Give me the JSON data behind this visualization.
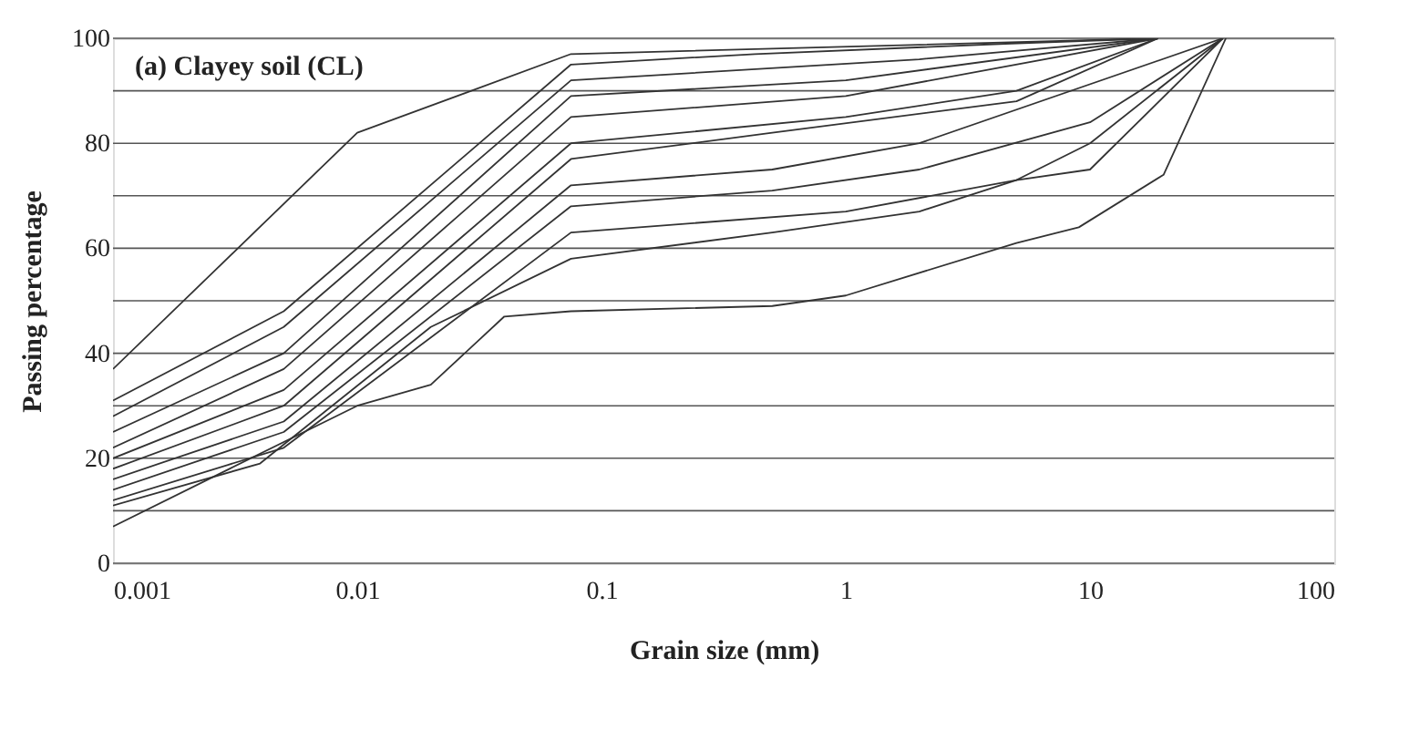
{
  "chart_data": {
    "type": "line",
    "xlabel": "Grain size (mm)",
    "ylabel": "Passing percentage",
    "annotations": [
      "(a) Clayey soil (CL)"
    ],
    "log": "x",
    "grid": "y",
    "marker": "none",
    "line_style": "solid",
    "xlim": [
      0.001,
      100
    ],
    "xticks": [
      0.001,
      0.01,
      0.1,
      1,
      10,
      100
    ],
    "ylim": [
      0,
      100
    ],
    "yticks": [
      0,
      {
        "value": 10,
        "label": null
      },
      20,
      {
        "value": 30,
        "label": null
      },
      40,
      {
        "value": 50,
        "label": null
      },
      60,
      {
        "value": 70,
        "label": null
      },
      80,
      {
        "value": 90,
        "label": null
      },
      100
    ],
    "series": [
      {
        "color": "#333333",
        "x": [
          0.001,
          0.01,
          0.075,
          19
        ],
        "values": [
          37,
          82,
          97,
          100
        ]
      },
      {
        "color": "#333333",
        "x": [
          0.001,
          0.005,
          0.075,
          0.425,
          4.75,
          19
        ],
        "values": [
          31,
          48,
          95,
          97,
          99,
          100
        ]
      },
      {
        "color": "#333333",
        "x": [
          0.001,
          0.005,
          0.075,
          2,
          19
        ],
        "values": [
          28,
          45,
          92,
          96,
          100
        ]
      },
      {
        "color": "#333333",
        "x": [
          0.001,
          0.005,
          0.075,
          1,
          19
        ],
        "values": [
          25,
          40,
          89,
          92,
          100
        ]
      },
      {
        "color": "#333333",
        "x": [
          0.001,
          0.005,
          0.075,
          1,
          19
        ],
        "values": [
          22,
          37,
          85,
          89,
          100
        ]
      },
      {
        "color": "#333333",
        "x": [
          0.001,
          0.005,
          0.075,
          1,
          5,
          19
        ],
        "values": [
          20,
          33,
          80,
          85,
          90,
          100
        ]
      },
      {
        "color": "#333333",
        "x": [
          0.001,
          0.005,
          0.075,
          0.5,
          5,
          19
        ],
        "values": [
          18,
          30,
          77,
          82,
          88,
          100
        ]
      },
      {
        "color": "#333333",
        "x": [
          0.001,
          0.005,
          0.075,
          0.5,
          2,
          35
        ],
        "values": [
          16,
          27,
          72,
          75,
          80,
          100
        ]
      },
      {
        "color": "#333333",
        "x": [
          0.001,
          0.005,
          0.075,
          0.5,
          2,
          10,
          35
        ],
        "values": [
          14,
          25,
          68,
          71,
          75,
          84,
          100
        ]
      },
      {
        "color": "#333333",
        "x": [
          0.001,
          0.005,
          0.075,
          1,
          5,
          10,
          35
        ],
        "values": [
          12,
          22,
          63,
          67,
          73,
          75,
          100
        ]
      },
      {
        "color": "#333333",
        "x": [
          0.001,
          0.004,
          0.02,
          0.075,
          0.5,
          2,
          5,
          10,
          35
        ],
        "values": [
          11,
          19,
          45,
          58,
          63,
          67,
          73,
          80,
          100
        ]
      },
      {
        "color": "#333333",
        "x": [
          0.001,
          0.003,
          0.01,
          0.02,
          0.04,
          0.075,
          0.5,
          1,
          5,
          9,
          20,
          36
        ],
        "values": [
          7,
          18,
          30,
          34,
          47,
          48,
          49,
          51,
          61,
          64,
          74,
          100
        ]
      }
    ]
  }
}
